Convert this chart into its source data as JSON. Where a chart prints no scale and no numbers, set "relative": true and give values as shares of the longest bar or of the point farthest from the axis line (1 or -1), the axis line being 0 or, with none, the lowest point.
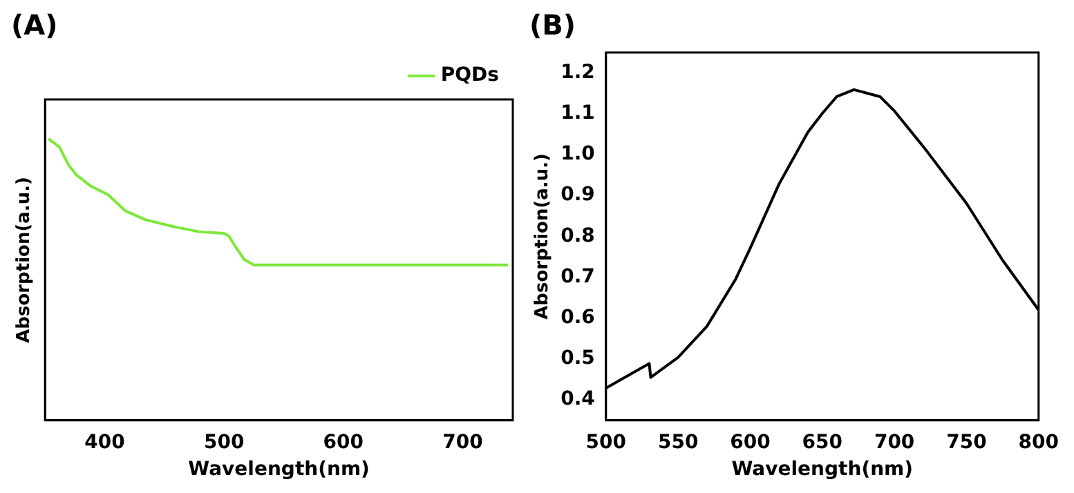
{
  "chart_data": [
    {
      "type": "line",
      "title": "(A)",
      "xlabel": "Wavelength(nm)",
      "ylabel": "Absorption(a.u.)",
      "relative": true,
      "xlim": [
        350,
        742
      ],
      "xticks": [
        400,
        500,
        600,
        700
      ],
      "grid": false,
      "legend": "top right",
      "marker": "none",
      "line_style": "solid",
      "series": [
        {
          "name": "PQDs",
          "color": "#7ee83a",
          "x": [
            353,
            362,
            370,
            376,
            388,
            403,
            417,
            434,
            459,
            479,
            500,
            504,
            510,
            517,
            525,
            541,
            600,
            650,
            700,
            738
          ],
          "values": [
            1.0,
            0.971,
            0.905,
            0.873,
            0.833,
            0.801,
            0.745,
            0.713,
            0.687,
            0.67,
            0.664,
            0.655,
            0.614,
            0.571,
            0.552,
            0.552,
            0.552,
            0.552,
            0.552,
            0.552
          ]
        }
      ]
    },
    {
      "type": "line",
      "title": "(B)",
      "xlabel": "Wavelength(nm)",
      "ylabel": "Absorption(a.u.)",
      "xlim": [
        500,
        800
      ],
      "xticks": [
        500,
        550,
        600,
        650,
        700,
        750,
        800
      ],
      "ylim": [
        0.35,
        1.25
      ],
      "yticks": [
        0.4,
        0.5,
        0.6,
        0.7,
        0.8,
        0.9,
        {
          "value": 1.0,
          "label": "1.0"
        },
        1.1,
        1.2
      ],
      "grid": false,
      "legend": false,
      "marker": "none",
      "line_style": "solid",
      "series": [
        {
          "color": "#000000",
          "x": [
            500,
            530,
            531,
            550,
            570,
            590,
            600,
            620,
            640,
            650,
            660,
            672,
            690,
            700,
            720,
            750,
            775,
            800
          ],
          "values": [
            0.429,
            0.489,
            0.455,
            0.504,
            0.58,
            0.696,
            0.771,
            0.928,
            1.055,
            1.101,
            1.142,
            1.159,
            1.142,
            1.107,
            1.02,
            0.881,
            0.742,
            0.62
          ]
        }
      ]
    }
  ]
}
